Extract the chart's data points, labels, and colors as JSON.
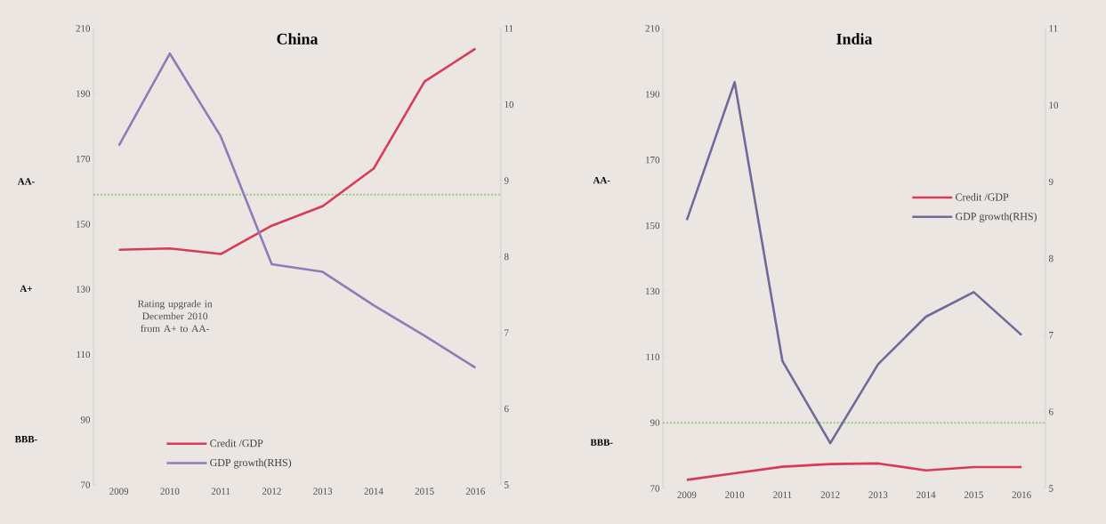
{
  "chart_data": [
    {
      "type": "line",
      "title": "China",
      "categories": [
        "2009",
        "2010",
        "2011",
        "2012",
        "2013",
        "2014",
        "2015",
        "2016"
      ],
      "series": [
        {
          "name": "Credit /GDP",
          "color": "#d93a55",
          "values": [
            142.1,
            142.5,
            140.8,
            149.5,
            155.5,
            167,
            193.7,
            203.8
          ]
        },
        {
          "name": "GDP growth(RHS)",
          "color": "#8c7cb8",
          "axis": "y2",
          "values": [
            9.46,
            10.67,
            9.58,
            7.9,
            7.8,
            7.36,
            6.96,
            6.54
          ]
        }
      ],
      "ylim": [
        70,
        210
      ],
      "yticks": [
        70,
        90,
        110,
        130,
        150,
        170,
        190,
        210
      ],
      "y2lim": [
        5,
        11
      ],
      "y2ticks": [
        5,
        6,
        7,
        8,
        9,
        10,
        11
      ],
      "ref_lines": [
        {
          "axis": "y",
          "value": 159,
          "color": "#8fd07a",
          "line_style": "dotted"
        }
      ],
      "annotations": [
        "Rating upgrade in December 2010 from A+ to AA-",
        "AA-",
        "A+",
        "BBB-"
      ],
      "legend": "bottom"
    },
    {
      "type": "line",
      "title": "India",
      "categories": [
        "2009",
        "2010",
        "2011",
        "2012",
        "2013",
        "2014",
        "2015",
        "2016"
      ],
      "series": [
        {
          "name": "Credit /GDP",
          "color": "#d93a55",
          "values": [
            72.6,
            74.6,
            76.6,
            77.4,
            77.6,
            75.5,
            76.5,
            76.5
          ]
        },
        {
          "name": "GDP growth(RHS)",
          "color": "#6e6a9a",
          "axis": "y2",
          "values": [
            8.5,
            10.3,
            6.66,
            5.59,
            6.62,
            7.24,
            7.56,
            7.0
          ]
        }
      ],
      "ylim": [
        70,
        210
      ],
      "yticks": [
        70,
        90,
        110,
        130,
        150,
        170,
        190,
        210
      ],
      "y2lim": [
        5,
        11
      ],
      "y2ticks": [
        5,
        6,
        7,
        8,
        9,
        10,
        11
      ],
      "ref_lines": [
        {
          "axis": "y",
          "value": 90,
          "color": "#8fd07a",
          "line_style": "dotted"
        }
      ],
      "annotations": [
        "AA-",
        "BBB-"
      ],
      "legend": "right"
    }
  ]
}
